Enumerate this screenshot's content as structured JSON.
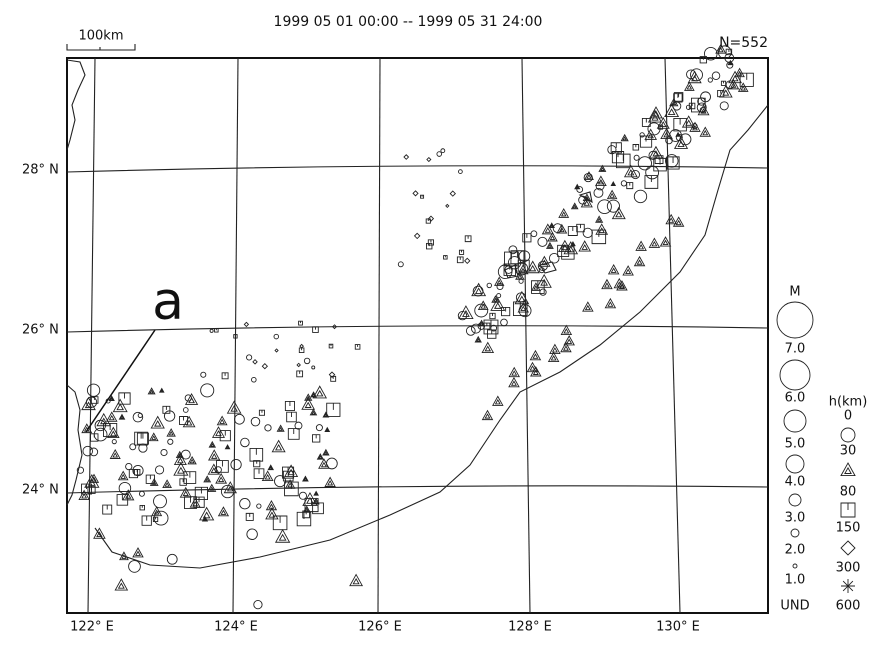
{
  "title": "1999 05 01 00:00 -- 1999 05 31 24:00",
  "count": "N=552",
  "scale_bar": "100km",
  "annotation": "a",
  "lat_labels": [
    "28° N",
    "26° N",
    "24° N"
  ],
  "lon_labels": [
    "122° E",
    "124° E",
    "126° E",
    "128° E",
    "130° E"
  ],
  "legend": {
    "magnitude": {
      "title": "M",
      "labels": [
        "7.0",
        "6.0",
        "5.0",
        "4.0",
        "3.0",
        "2.0",
        "1.0",
        "UND"
      ]
    },
    "depth": {
      "title": "h(km)",
      "labels": [
        "0",
        "30",
        "80",
        "150",
        "300",
        "600"
      ]
    }
  }
}
